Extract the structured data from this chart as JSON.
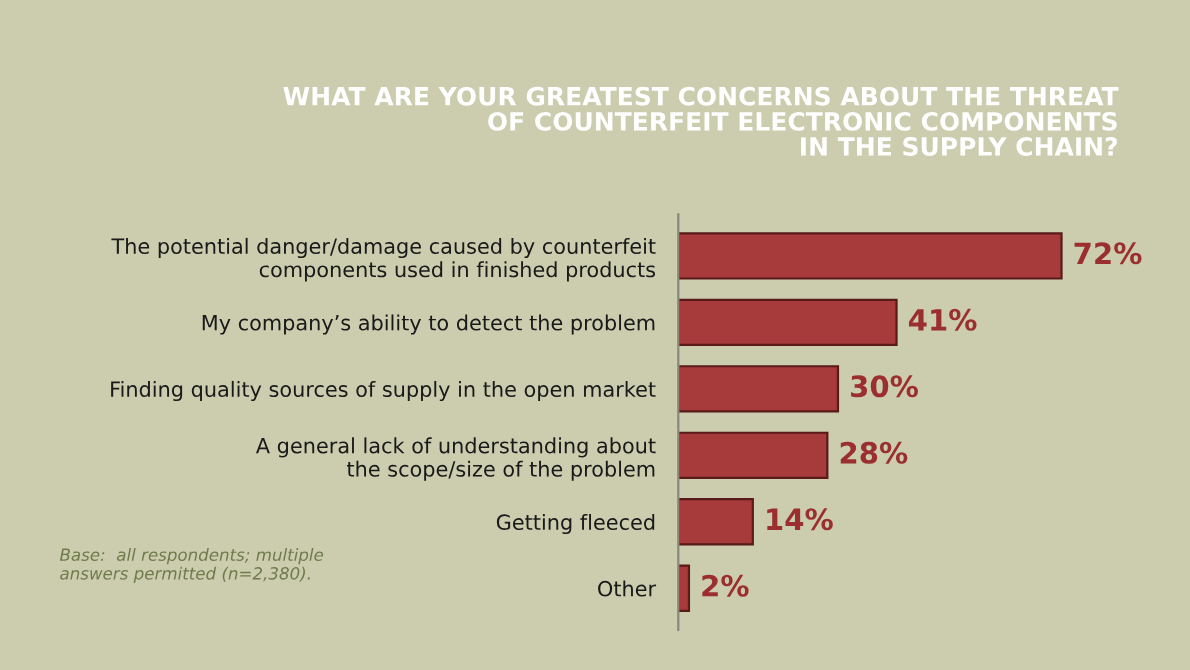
{
  "chart_data": {
    "type": "bar",
    "orientation": "horizontal",
    "title": "WHAT ARE YOUR GREATEST CONCERNS ABOUT THE THREAT\nOF COUNTERFEIT ELECTRONIC COMPONENTS\nIN THE SUPPLY CHAIN?",
    "categories": [
      "The potential danger/damage caused by counterfeit\ncomponents used in finished products",
      "My company’s ability to detect the problem",
      "Finding quality sources of supply in the open market",
      "A general lack of understanding about\nthe scope/size of the problem",
      "Getting fleeced",
      "Other"
    ],
    "values": [
      72,
      41,
      30,
      28,
      14,
      2
    ],
    "color": "#a73b3b",
    "value_labels": [
      "72%",
      "41%",
      "30%",
      "28%",
      "14%",
      "2%"
    ],
    "annotations": [
      "Base:  all respondents; multiple\nanswers permitted (n=2,380)."
    ],
    "grid": false,
    "legend": false
  }
}
